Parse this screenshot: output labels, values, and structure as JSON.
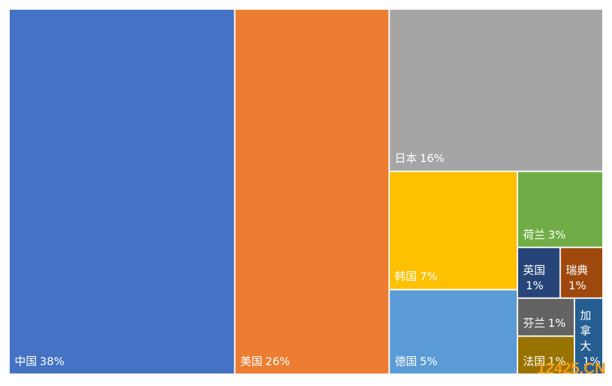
{
  "chart_data": {
    "type": "treemap",
    "categories": [
      "中国",
      "美国",
      "日本",
      "韩国",
      "德国",
      "荷兰",
      "英国",
      "瑞典",
      "芬兰",
      "法国",
      "加拿大"
    ],
    "values": [
      38,
      26,
      16,
      7,
      5,
      3,
      1,
      1,
      1,
      1,
      1
    ],
    "value_labels": [
      "38%",
      "26%",
      "16%",
      "7%",
      "5%",
      "3%",
      "1%",
      "1%",
      "1%",
      "1%",
      "1%"
    ],
    "colors": [
      "#4472C4",
      "#ED7D31",
      "#A5A5A5",
      "#FFC000",
      "#5B9BD5",
      "#70AD47",
      "#264478",
      "#9E480E",
      "#636363",
      "#997300",
      "#255E91"
    ]
  },
  "watermark": "12425.CN"
}
